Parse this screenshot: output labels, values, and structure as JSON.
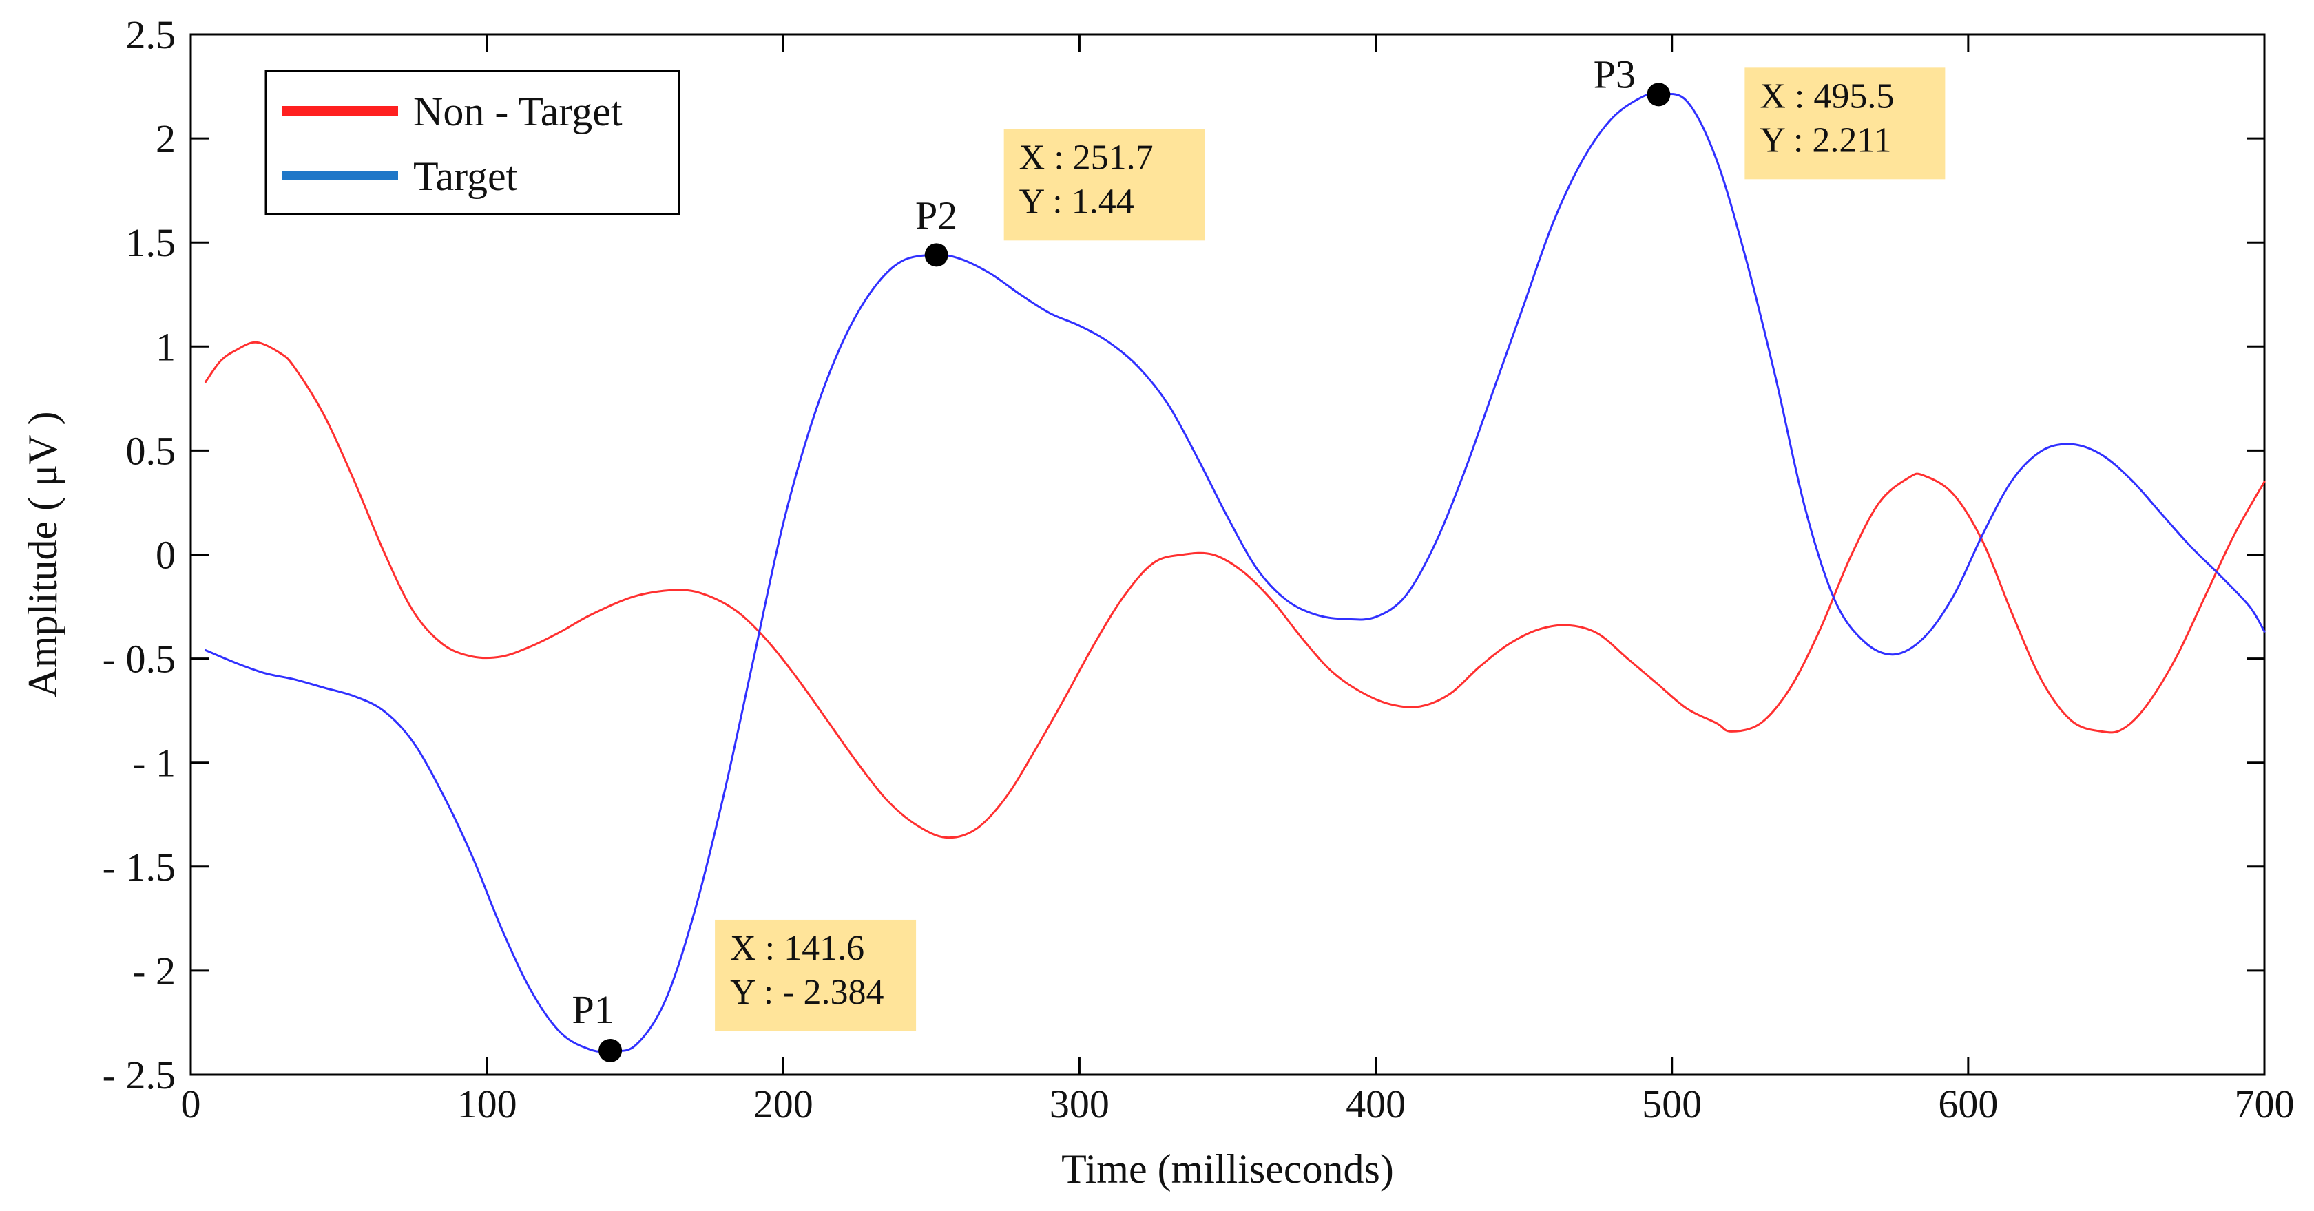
{
  "chart_data": {
    "type": "line",
    "title": "",
    "xlabel": "Time (milliseconds)",
    "ylabel": "Amplitude ( μV )",
    "xlim": [
      0,
      700
    ],
    "ylim": [
      -2.5,
      2.5
    ],
    "grid": false,
    "legend_position": "top-left",
    "xticks": [
      0,
      100,
      200,
      300,
      400,
      500,
      600,
      700
    ],
    "xtick_labels": [
      "0",
      "100",
      "200",
      "300",
      "400",
      "500",
      "600",
      "700"
    ],
    "yticks": [
      2.5,
      2,
      1.5,
      1,
      0.5,
      0,
      -0.5,
      -1,
      -1.5,
      -2,
      -2.5
    ],
    "ytick_labels": [
      "2.5",
      "2",
      "1.5",
      "1",
      "0.5",
      "0",
      "- 0.5",
      "- 1",
      "- 1.5",
      "- 2",
      "- 2.5"
    ],
    "series": [
      {
        "name": "Non - Target",
        "color": "#ff3030",
        "legend_color": "#ff2020",
        "x": [
          5,
          10,
          15,
          22,
          30,
          35,
          45,
          55,
          65,
          75,
          85,
          95,
          105,
          115,
          125,
          135,
          150,
          165,
          175,
          185,
          195,
          205,
          215,
          225,
          235,
          245,
          255,
          265,
          275,
          285,
          295,
          305,
          315,
          325,
          335,
          345,
          355,
          365,
          375,
          385,
          395,
          405,
          415,
          425,
          435,
          445,
          455,
          465,
          475,
          485,
          495,
          505,
          515,
          520,
          530,
          540,
          550,
          560,
          570,
          580,
          585,
          595,
          605,
          615,
          625,
          635,
          645,
          652,
          660,
          670,
          680,
          690,
          700
        ],
        "y": [
          0.83,
          0.93,
          0.98,
          1.02,
          0.97,
          0.9,
          0.67,
          0.36,
          0.02,
          -0.27,
          -0.43,
          -0.49,
          -0.49,
          -0.44,
          -0.37,
          -0.29,
          -0.2,
          -0.17,
          -0.2,
          -0.28,
          -0.42,
          -0.6,
          -0.8,
          -1.0,
          -1.18,
          -1.3,
          -1.36,
          -1.32,
          -1.17,
          -0.94,
          -0.69,
          -0.43,
          -0.2,
          -0.04,
          0.0,
          0.0,
          -0.08,
          -0.22,
          -0.4,
          -0.56,
          -0.66,
          -0.72,
          -0.73,
          -0.67,
          -0.54,
          -0.43,
          -0.36,
          -0.34,
          -0.38,
          -0.5,
          -0.62,
          -0.74,
          -0.81,
          -0.85,
          -0.81,
          -0.64,
          -0.36,
          -0.02,
          0.25,
          0.37,
          0.38,
          0.29,
          0.06,
          -0.29,
          -0.61,
          -0.8,
          -0.85,
          -0.84,
          -0.73,
          -0.5,
          -0.2,
          0.1,
          0.35
        ]
      },
      {
        "name": "Target",
        "color": "#3030ff",
        "legend_color": "#1f77c8",
        "x": [
          5,
          15,
          25,
          35,
          45,
          55,
          65,
          75,
          85,
          95,
          105,
          115,
          125,
          135,
          141.6,
          150,
          160,
          170,
          180,
          190,
          200,
          210,
          220,
          230,
          240,
          251.7,
          260,
          270,
          280,
          290,
          300,
          310,
          320,
          330,
          340,
          350,
          360,
          370,
          380,
          390,
          400,
          410,
          420,
          430,
          440,
          450,
          460,
          470,
          480,
          490,
          495.5,
          505,
          515,
          525,
          535,
          545,
          555,
          565,
          575,
          585,
          595,
          605,
          615,
          625,
          635,
          645,
          655,
          665,
          675,
          685,
          695,
          700
        ],
        "y": [
          -0.46,
          -0.52,
          -0.57,
          -0.6,
          -0.64,
          -0.68,
          -0.75,
          -0.9,
          -1.15,
          -1.45,
          -1.8,
          -2.1,
          -2.3,
          -2.38,
          -2.384,
          -2.36,
          -2.15,
          -1.72,
          -1.15,
          -0.5,
          0.15,
          0.65,
          1.02,
          1.27,
          1.41,
          1.44,
          1.42,
          1.35,
          1.25,
          1.16,
          1.1,
          1.02,
          0.9,
          0.72,
          0.46,
          0.18,
          -0.07,
          -0.22,
          -0.29,
          -0.31,
          -0.3,
          -0.2,
          0.05,
          0.4,
          0.8,
          1.2,
          1.6,
          1.9,
          2.1,
          2.2,
          2.211,
          2.18,
          1.9,
          1.42,
          0.85,
          0.22,
          -0.22,
          -0.42,
          -0.48,
          -0.4,
          -0.2,
          0.1,
          0.36,
          0.5,
          0.53,
          0.48,
          0.36,
          0.2,
          0.04,
          -0.1,
          -0.25,
          -0.37
        ]
      }
    ],
    "peaks": [
      {
        "label": "P1",
        "x": 141.6,
        "y": -2.384,
        "datatip": [
          "X : 141.6",
          "Y : - 2.384"
        ]
      },
      {
        "label": "P2",
        "x": 251.7,
        "y": 1.44,
        "datatip": [
          "X : 251.7",
          "Y : 1.44"
        ]
      },
      {
        "label": "P3",
        "x": 495.5,
        "y": 2.211,
        "datatip": [
          "X : 495.5",
          "Y : 2.211"
        ]
      }
    ],
    "datatip_color": "#ffe49a"
  }
}
